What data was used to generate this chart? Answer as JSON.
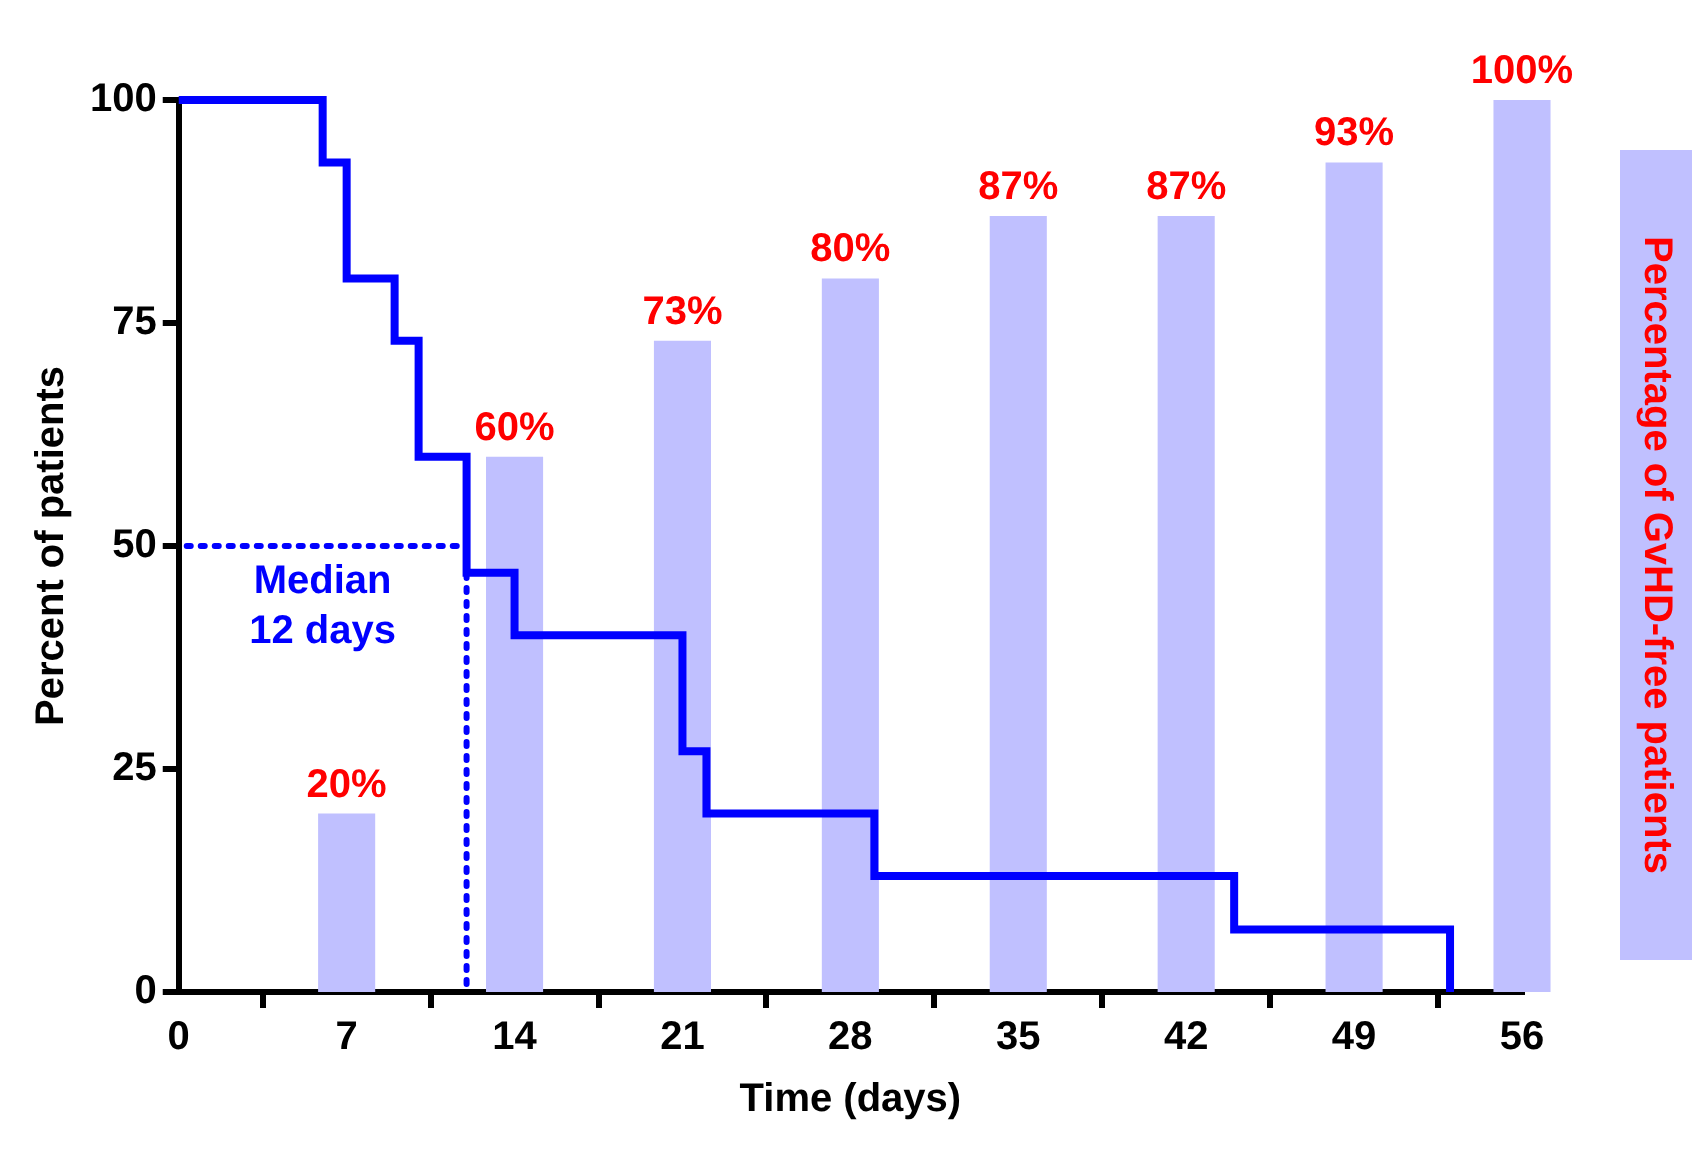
{
  "chart_data": {
    "type": "bar",
    "xlabel": "Time (days)",
    "ylabel": "Percent of patients",
    "y2label": "Percentage of GvHD-free patients",
    "xlim": [
      0,
      56
    ],
    "xticks": [
      0,
      7,
      14,
      21,
      28,
      35,
      42,
      49,
      56
    ],
    "ylim": [
      0,
      100
    ],
    "yticks": [
      0,
      25,
      50,
      75,
      100
    ],
    "series": [
      {
        "axis": "y2",
        "color": "#c0c0ff",
        "x": [
          7,
          14,
          21,
          28,
          35,
          42,
          49,
          56
        ],
        "values": [
          20,
          60,
          73,
          80,
          87,
          87,
          93,
          100
        ],
        "value_labels": [
          "20%",
          "60%",
          "73%",
          "80%",
          "87%",
          "87%",
          "93%",
          "100%"
        ]
      },
      {
        "type": "step",
        "color": "#0000ff",
        "x": [
          0,
          6,
          7,
          9,
          10,
          12,
          14,
          21,
          22,
          29,
          44,
          53
        ],
        "values": [
          100,
          93,
          80,
          73,
          60,
          47,
          40,
          27,
          20,
          13,
          7,
          0
        ]
      }
    ],
    "ref_lines": [
      {
        "axis": "y",
        "value": 50,
        "color": "#0000ff",
        "line_style": "dotted"
      },
      {
        "axis": "x",
        "value": 12,
        "color": "#0000ff",
        "line_style": "dotted"
      }
    ],
    "annotations": [
      {
        "text": "Median\n12 days",
        "x": 12,
        "y": 50
      }
    ],
    "grid": false,
    "legend": false
  }
}
